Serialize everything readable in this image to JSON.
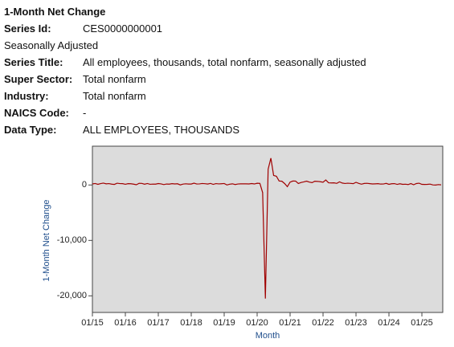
{
  "title": "1-Month Net Change",
  "series_info": [
    {
      "label": "Series Id:",
      "value": "CES0000000001"
    },
    {
      "text": "Seasonally Adjusted"
    },
    {
      "label": "Series Title:",
      "value": "All employees, thousands, total nonfarm, seasonally adjusted"
    },
    {
      "label": "Super Sector:",
      "value": "Total nonfarm"
    },
    {
      "label": "Industry:",
      "value": "Total nonfarm"
    },
    {
      "label": "NAICS Code:",
      "value": "-"
    },
    {
      "label": "Data Type:",
      "value": "ALL EMPLOYEES, THOUSANDS"
    }
  ],
  "chart_data": {
    "type": "line",
    "y_label": "1-Month Net Change",
    "x_label": "Month",
    "color": "#a00000",
    "background": "#dcdcdc",
    "ylim": [
      -23000,
      7000
    ],
    "yticks": [
      0,
      {
        "value": -10000,
        "label": "-10,000"
      },
      {
        "value": -20000,
        "label": "-20,000"
      }
    ],
    "categories": [
      "01/15",
      null,
      null,
      null,
      null,
      null,
      null,
      null,
      null,
      null,
      null,
      null,
      "01/16",
      null,
      null,
      null,
      null,
      null,
      null,
      null,
      null,
      null,
      null,
      null,
      "01/17",
      null,
      null,
      null,
      null,
      null,
      null,
      null,
      null,
      null,
      null,
      null,
      "01/18",
      null,
      null,
      null,
      null,
      null,
      null,
      null,
      null,
      null,
      null,
      null,
      "01/19",
      null,
      null,
      null,
      null,
      null,
      null,
      null,
      null,
      null,
      null,
      null,
      "01/20",
      null,
      null,
      null,
      null,
      null,
      null,
      null,
      null,
      null,
      null,
      null,
      "01/21",
      null,
      null,
      null,
      null,
      null,
      null,
      null,
      null,
      null,
      null,
      null,
      "01/22",
      null,
      null,
      null,
      null,
      null,
      null,
      null,
      null,
      null,
      null,
      null,
      "01/23",
      null,
      null,
      null,
      null,
      null,
      null,
      null,
      null,
      null,
      null,
      null,
      "01/24",
      null,
      null,
      null,
      null,
      null,
      null,
      null,
      null,
      null,
      null,
      null,
      "01/25",
      null,
      null,
      null,
      null,
      null,
      null,
      null
    ],
    "values": [
      190,
      266,
      119,
      251,
      344,
      206,
      254,
      157,
      100,
      321,
      252,
      239,
      126,
      237,
      225,
      153,
      43,
      297,
      291,
      135,
      265,
      124,
      164,
      155,
      259,
      195,
      73,
      175,
      155,
      239,
      190,
      221,
      18,
      162,
      216,
      175,
      176,
      330,
      182,
      196,
      270,
      235,
      173,
      282,
      108,
      250,
      196,
      227,
      269,
      1,
      147,
      210,
      85,
      182,
      207,
      207,
      208,
      185,
      261,
      184,
      315,
      289,
      -1373,
      -20493,
      2833,
      4846,
      1726,
      1583,
      716,
      680,
      264,
      -306,
      520,
      710,
      704,
      263,
      447,
      557,
      689,
      517,
      424,
      680,
      647,
      588,
      504,
      904,
      398,
      368,
      386,
      293,
      568,
      352,
      269,
      324,
      290,
      239,
      482,
      287,
      146,
      278,
      303,
      240,
      184,
      210,
      246,
      165,
      182,
      290,
      119,
      222,
      246,
      108,
      218,
      118,
      144,
      78,
      255,
      43,
      261,
      323,
      111,
      102,
      120,
      158,
      19,
      -13,
      72,
      22
    ]
  }
}
